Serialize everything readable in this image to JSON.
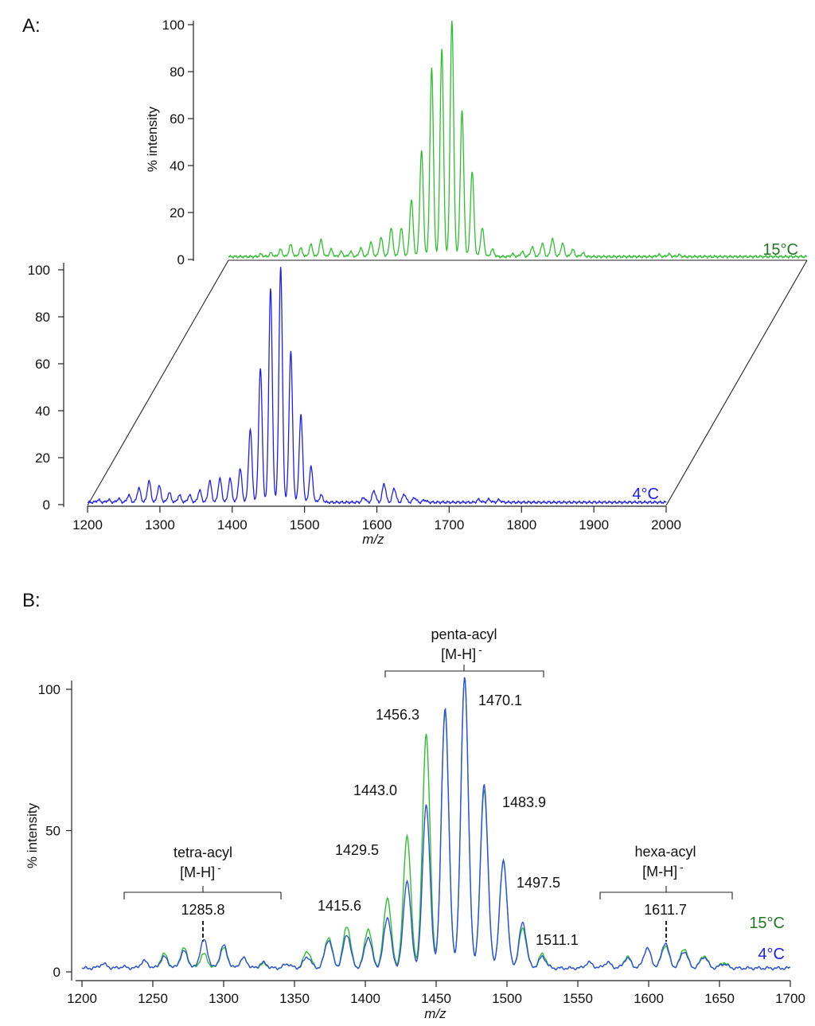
{
  "panels": {
    "a_label": "A:",
    "b_label": "B:"
  },
  "chart_data": [
    {
      "type": "line",
      "title": "",
      "xlabel": "m/z",
      "ylabel": "% intensity",
      "xlim": [
        1200,
        2000
      ],
      "ylim": [
        0,
        100
      ],
      "x_ticks": [
        "1200",
        "1300",
        "1400",
        "1500",
        "1600",
        "1700",
        "1800",
        "1900",
        "2000"
      ],
      "y_ticks_front": [
        "0",
        "20",
        "40",
        "60",
        "80",
        "100"
      ],
      "y_ticks_back": [
        "0",
        "20",
        "40",
        "60",
        "80",
        "100"
      ],
      "series": [
        {
          "name": "15°C",
          "label": "15°C",
          "color": "#2fbf2f",
          "label_color": "#1f7a1f",
          "peaks": [
            [
              1245,
              1.0
            ],
            [
              1259,
              1.5
            ],
            [
              1272,
              3
            ],
            [
              1286,
              5
            ],
            [
              1300,
              3.5
            ],
            [
              1314,
              5
            ],
            [
              1328,
              7
            ],
            [
              1342,
              3
            ],
            [
              1356,
              2
            ],
            [
              1369,
              2
            ],
            [
              1383,
              3.5
            ],
            [
              1397,
              6
            ],
            [
              1411,
              8
            ],
            [
              1425,
              12
            ],
            [
              1439,
              12
            ],
            [
              1453,
              24
            ],
            [
              1467,
              45
            ],
            [
              1481,
              80
            ],
            [
              1495,
              88
            ],
            [
              1509,
              100
            ],
            [
              1523,
              62
            ],
            [
              1537,
              36
            ],
            [
              1551,
              12
            ],
            [
              1565,
              3
            ],
            [
              1593,
              1
            ],
            [
              1606,
              2
            ],
            [
              1620,
              4
            ],
            [
              1634,
              5.5
            ],
            [
              1648,
              7.5
            ],
            [
              1662,
              5.5
            ],
            [
              1676,
              3
            ],
            [
              1690,
              1.5
            ],
            [
              1795,
              0.8
            ],
            [
              1809,
              1
            ],
            [
              1823,
              0.7
            ]
          ]
        },
        {
          "name": "4°C",
          "label": "4°C",
          "color": "#2020e8",
          "label_color": "#1a1aff",
          "peaks": [
            [
              1215,
              1
            ],
            [
              1229,
              1
            ],
            [
              1243,
              1.5
            ],
            [
              1257,
              3
            ],
            [
              1271,
              6
            ],
            [
              1285,
              9
            ],
            [
              1299,
              7
            ],
            [
              1313,
              4
            ],
            [
              1327,
              3
            ],
            [
              1341,
              3
            ],
            [
              1355,
              5
            ],
            [
              1369,
              9
            ],
            [
              1383,
              10
            ],
            [
              1397,
              10
            ],
            [
              1411,
              14
            ],
            [
              1425,
              31
            ],
            [
              1439,
              57
            ],
            [
              1453,
              91
            ],
            [
              1467,
              100
            ],
            [
              1481,
              64
            ],
            [
              1495,
              37
            ],
            [
              1509,
              15
            ],
            [
              1523,
              3
            ],
            [
              1582,
              2
            ],
            [
              1596,
              5
            ],
            [
              1610,
              8
            ],
            [
              1624,
              6
            ],
            [
              1638,
              3.5
            ],
            [
              1652,
              2
            ],
            [
              1666,
              1
            ],
            [
              1741,
              1.2
            ],
            [
              1755,
              1.2
            ],
            [
              1769,
              1
            ]
          ]
        }
      ]
    },
    {
      "type": "line",
      "title": "",
      "xlabel": "m/z",
      "ylabel": "% intensity",
      "xlim": [
        1200,
        1700
      ],
      "ylim": [
        0,
        100
      ],
      "x_ticks": [
        "1200",
        "1250",
        "1300",
        "1350",
        "1400",
        "1450",
        "1500",
        "1550",
        "1600",
        "1650",
        "1700"
      ],
      "y_ticks": [
        "0",
        "50",
        "100"
      ],
      "series": [
        {
          "name": "15°C",
          "label": "15°C",
          "color": "#2fbf2f",
          "label_color": "#1f7a1f",
          "peaks": [
            [
              1215,
              1.5
            ],
            [
              1229,
              0.5
            ],
            [
              1244,
              2.5
            ],
            [
              1258,
              5
            ],
            [
              1272,
              7
            ],
            [
              1286,
              5
            ],
            [
              1300,
              7
            ],
            [
              1314,
              3.5
            ],
            [
              1328,
              1.5
            ],
            [
              1345,
              1.5
            ],
            [
              1359,
              6
            ],
            [
              1374,
              11
            ],
            [
              1387,
              15
            ],
            [
              1402,
              14
            ],
            [
              1415.6,
              25
            ],
            [
              1429.5,
              47
            ],
            [
              1443,
              83
            ],
            [
              1456.3,
              91
            ],
            [
              1470.1,
              103
            ],
            [
              1483.9,
              63
            ],
            [
              1497.5,
              38
            ],
            [
              1511.1,
              14
            ],
            [
              1525,
              5
            ],
            [
              1558,
              2
            ],
            [
              1571,
              2
            ],
            [
              1585,
              4
            ],
            [
              1599,
              7
            ],
            [
              1611.7,
              8
            ],
            [
              1625,
              7
            ],
            [
              1639,
              4.5
            ],
            [
              1653,
              2
            ]
          ]
        },
        {
          "name": "4°C",
          "label": "4°C",
          "color": "#2f4fe0",
          "label_color": "#1a1aff",
          "peaks": [
            [
              1215,
              1.5
            ],
            [
              1229,
              0.5
            ],
            [
              1244,
              2.5
            ],
            [
              1258,
              4
            ],
            [
              1272,
              6
            ],
            [
              1286,
              10
            ],
            [
              1300,
              8
            ],
            [
              1314,
              3.5
            ],
            [
              1328,
              2
            ],
            [
              1345,
              1.5
            ],
            [
              1359,
              4
            ],
            [
              1374,
              10
            ],
            [
              1387,
              12
            ],
            [
              1402,
              11
            ],
            [
              1415.6,
              18
            ],
            [
              1429.5,
              31
            ],
            [
              1443,
              58
            ],
            [
              1456.3,
              92
            ],
            [
              1470.1,
              103
            ],
            [
              1483.9,
              65
            ],
            [
              1497.5,
              38
            ],
            [
              1511.1,
              16
            ],
            [
              1525,
              4
            ],
            [
              1558,
              2
            ],
            [
              1571,
              2
            ],
            [
              1585,
              3.5
            ],
            [
              1599,
              7
            ],
            [
              1611.7,
              9
            ],
            [
              1625,
              6
            ],
            [
              1639,
              4
            ],
            [
              1653,
              1.5
            ]
          ]
        }
      ],
      "annotations": {
        "tetra_title": "tetra-acyl",
        "tetra_ion_base": "[M-H]",
        "tetra_ion_sup": "-",
        "tetra_peak": "1285.8",
        "penta_title": "penta-acyl",
        "penta_ion_base": "[M-H]",
        "penta_ion_sup": "-",
        "hexa_title": "hexa-acyl",
        "hexa_ion_base": "[M-H]",
        "hexa_ion_sup": "-",
        "hexa_peak": "1611.7",
        "peak_labels": [
          "1415.6",
          "1429.5",
          "1443.0",
          "1456.3",
          "1470.1",
          "1483.9",
          "1497.5",
          "1511.1"
        ]
      }
    }
  ]
}
